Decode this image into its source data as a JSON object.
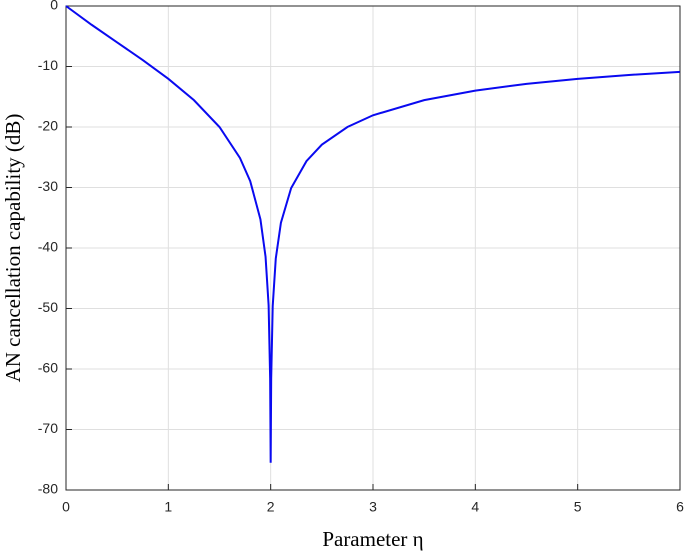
{
  "chart_data": {
    "type": "line",
    "x_label": "Parameter η",
    "y_label": "AN cancellation capability (dB)",
    "x": [
      0,
      0.25,
      0.5,
      0.75,
      1,
      1.25,
      1.5,
      1.7,
      1.8,
      1.9,
      1.95,
      1.98,
      1.995,
      2,
      2.005,
      2.02,
      2.05,
      2.1,
      2.2,
      2.35,
      2.5,
      2.75,
      3,
      3.5,
      4,
      4.5,
      5,
      5.5,
      6
    ],
    "series": [
      {
        "color": "#0a0af0",
        "values": [
          0,
          -3.1,
          -6.02,
          -8.94,
          -12.04,
          -15.56,
          -20,
          -25.11,
          -28.94,
          -35.27,
          -41.44,
          -49.48,
          -61.57,
          -75.5,
          -61.6,
          -49.6,
          -41.73,
          -35.85,
          -30.1,
          -25.64,
          -22.92,
          -20,
          -18.06,
          -15.56,
          -13.98,
          -12.87,
          -12.04,
          -11.4,
          -10.88
        ]
      }
    ],
    "xlim": [
      0,
      6
    ],
    "xticks": [
      0,
      1,
      2,
      3,
      4,
      5,
      6
    ],
    "ylim": [
      -80,
      0
    ],
    "yticks": [
      -80,
      -70,
      -60,
      -50,
      -40,
      -30,
      -20,
      -10,
      0
    ],
    "grid": true
  }
}
